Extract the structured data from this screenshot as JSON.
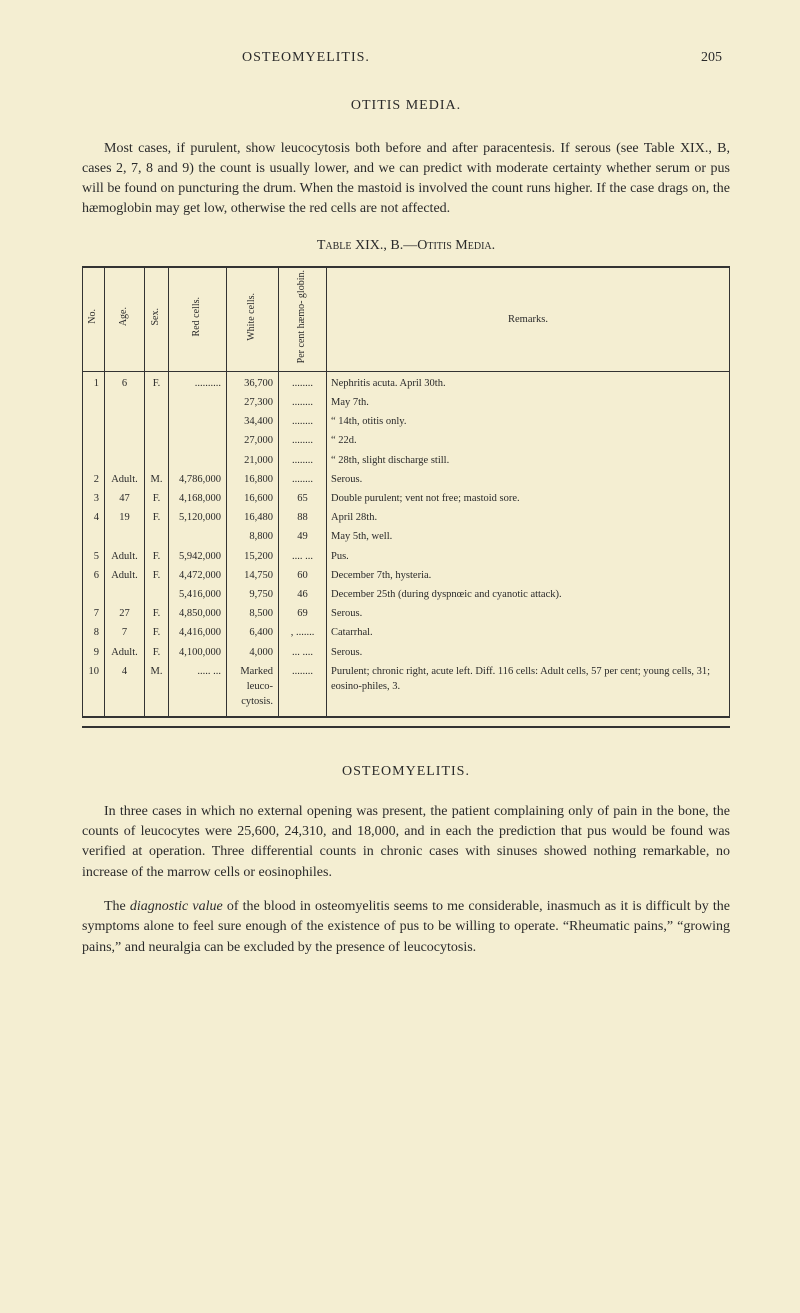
{
  "header": {
    "running_head": "OSTEOMYELITIS.",
    "page_number": "205"
  },
  "section1": {
    "title": "OTITIS MEDIA.",
    "para1": "Most cases, if purulent, show leucocytosis both before and after paracentesis. If serous (see Table XIX., B, cases 2, 7, 8 and 9) the count is usually lower, and we can predict with moderate certainty whether serum or pus will be found on puncturing the drum. When the mastoid is involved the count runs higher. If the case drags on, the hæmoglobin may get low, otherwise the red cells are not affected."
  },
  "table": {
    "caption": "Table XIX., B.—Otitis Media.",
    "columns": {
      "no": "No.",
      "age": "Age.",
      "sex": "Sex.",
      "red": "Red cells.",
      "white": "White cells.",
      "pct": "Per cent hæmo- globin.",
      "remarks": "Remarks."
    },
    "rows": [
      {
        "no": "1",
        "age": "6",
        "sex": "F.",
        "red": "..........",
        "white": "36,700",
        "pct": "........",
        "remarks": "Nephritis acuta.  April 30th."
      },
      {
        "no": "",
        "age": "",
        "sex": "",
        "red": "",
        "white": "27,300",
        "pct": "........",
        "remarks": "May  7th."
      },
      {
        "no": "",
        "age": "",
        "sex": "",
        "red": "",
        "white": "34,400",
        "pct": "........",
        "remarks": " “  14th, otitis only."
      },
      {
        "no": "",
        "age": "",
        "sex": "",
        "red": "",
        "white": "27,000",
        "pct": "........",
        "remarks": " “  22d."
      },
      {
        "no": "",
        "age": "",
        "sex": "",
        "red": "",
        "white": "21,000",
        "pct": "........",
        "remarks": " “  28th, slight discharge still."
      },
      {
        "no": "2",
        "age": "Adult.",
        "sex": "M.",
        "red": "4,786,000",
        "white": "16,800",
        "pct": "........",
        "remarks": "Serous."
      },
      {
        "no": "3",
        "age": "47",
        "sex": "F.",
        "red": "4,168,000",
        "white": "16,600",
        "pct": "65",
        "remarks": "Double purulent; vent not free; mastoid sore."
      },
      {
        "no": "4",
        "age": "19",
        "sex": "F.",
        "red": "5,120,000",
        "white": "16,480",
        "pct": "88",
        "remarks": "April 28th."
      },
      {
        "no": "",
        "age": "",
        "sex": "",
        "red": "",
        "white": "8,800",
        "pct": "49",
        "remarks": "May 5th, well."
      },
      {
        "no": "5",
        "age": "Adult.",
        "sex": "F.",
        "red": "5,942,000",
        "white": "15,200",
        "pct": ".... ...",
        "remarks": "Pus."
      },
      {
        "no": "6",
        "age": "Adult.",
        "sex": "F.",
        "red": "4,472,000",
        "white": "14,750",
        "pct": "60",
        "remarks": "December  7th, hysteria."
      },
      {
        "no": "",
        "age": "",
        "sex": "",
        "red": "5,416,000",
        "white": "9,750",
        "pct": "46",
        "remarks": "December 25th (during dyspnœic and cyanotic attack)."
      },
      {
        "no": "7",
        "age": "27",
        "sex": "F.",
        "red": "4,850,000",
        "white": "8,500",
        "pct": "69",
        "remarks": "Serous."
      },
      {
        "no": "8",
        "age": "7",
        "sex": "F.",
        "red": "4,416,000",
        "white": "6,400",
        "pct": ", .......",
        "remarks": "Catarrhal."
      },
      {
        "no": "9",
        "age": "Adult.",
        "sex": "F.",
        "red": "4,100,000",
        "white": "4,000",
        "pct": "... ....",
        "remarks": "Serous."
      },
      {
        "no": "10",
        "age": "4",
        "sex": "M.",
        "red": "..... ...",
        "white": "Marked leuco-cytosis.",
        "pct": "........",
        "remarks": "Purulent; chronic right, acute left. Diff. 116 cells: Adult cells, 57 per cent; young cells, 31; eosino-philes, 3."
      }
    ]
  },
  "section2": {
    "title": "OSTEOMYELITIS.",
    "para1": "In three cases in which no external opening was present, the patient complaining only of pain in the bone, the counts of leucocytes were 25,600, 24,310, and 18,000, and in each the prediction that pus would be found was verified at operation. Three differential counts in chronic cases with sinuses showed nothing remarkable, no increase of the marrow cells or eosinophiles.",
    "para2_prefix": "The ",
    "para2_italic": "diagnostic value",
    "para2_rest": " of the blood in osteomyelitis seems to me considerable, inasmuch as it is difficult by the symptoms alone to feel sure enough of the existence of pus to be willing to operate. “Rheumatic pains,” “growing pains,” and neuralgia can be excluded by the presence of leucocytosis."
  }
}
